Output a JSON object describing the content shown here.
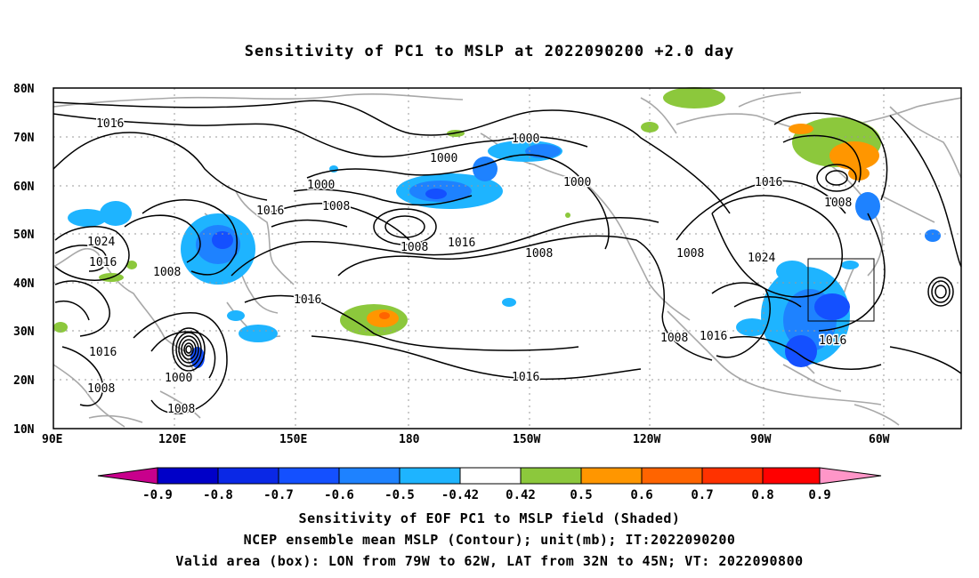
{
  "title": "Sensitivity of PC1 to MSLP at 2022090200 +2.0 day",
  "map": {
    "lat_ticks": [
      "80N",
      "70N",
      "60N",
      "50N",
      "40N",
      "30N",
      "20N",
      "10N"
    ],
    "lon_ticks": [
      "90E",
      "120E",
      "150E",
      "180",
      "150W",
      "120W",
      "90W",
      "60W"
    ],
    "contour_labels": [
      "1016",
      "1000",
      "1000",
      "1000",
      "1000",
      "1008",
      "1016",
      "1008",
      "1024",
      "1016",
      "1008",
      "1016",
      "1008",
      "1016",
      "1008",
      "1024",
      "1008",
      "1016",
      "1008",
      "1016",
      "1016",
      "1000",
      "1008"
    ],
    "valid_box": {
      "lon": [
        "79W",
        "62W"
      ],
      "lat": [
        "32N",
        "45N"
      ]
    }
  },
  "colorbar": {
    "levels": [
      "-0.9",
      "-0.8",
      "-0.7",
      "-0.6",
      "-0.5",
      "-0.42",
      "0.42",
      "0.5",
      "0.6",
      "0.7",
      "0.8",
      "0.9"
    ],
    "colors": [
      "#c8008c",
      "#0000c8",
      "#0a28e6",
      "#1450ff",
      "#1e82ff",
      "#1eb4ff",
      "#ffffff",
      "#8cc83c",
      "#ff9600",
      "#ff6400",
      "#ff3200",
      "#ff0000",
      "#ff96c8"
    ]
  },
  "captions": {
    "line1": "Sensitivity of EOF PC1 to MSLP field (Shaded)",
    "line2": "NCEP ensemble mean MSLP (Contour); unit(mb); IT:2022090200",
    "line3": "Valid area (box): LON from 79W to 62W, LAT from 32N to 45N; VT: 2022090800"
  }
}
